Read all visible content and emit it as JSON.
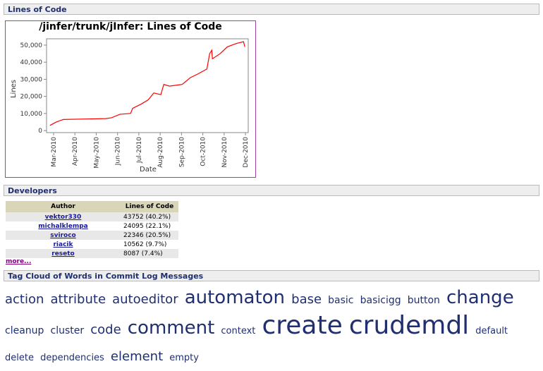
{
  "sections": [
    "Lines of Code",
    "Developers",
    "Tag Cloud of Words in Commit Log Messages"
  ],
  "chart_data": {
    "type": "line",
    "title": "/jinfer/trunk/jInfer: Lines of Code",
    "xlabel": "Date",
    "ylabel": "Lines",
    "x": [
      2.83,
      3.13,
      3.46,
      5.45,
      5.72,
      6.11,
      6.61,
      6.71,
      7.11,
      7.44,
      7.7,
      8.03,
      8.17,
      8.43,
      9.03,
      9.42,
      9.75,
      10.19,
      10.32,
      10.42,
      10.45,
      10.81,
      11.15,
      11.58,
      11.91,
      11.97
    ],
    "series": [
      {
        "name": "Lines",
        "color": "#ff0000",
        "values": [
          3000,
          5000,
          6500,
          7000,
          7500,
          9500,
          10000,
          13000,
          15500,
          18000,
          22000,
          21000,
          27000,
          26000,
          27000,
          31000,
          33000,
          36000,
          45000,
          47000,
          42000,
          45000,
          49000,
          51000,
          52000,
          49000
        ]
      }
    ],
    "xlim": [
      2.67,
      12.13
    ],
    "xticks": [
      {
        "value": 3,
        "label": "Mar-2010"
      },
      {
        "value": 4,
        "label": "Apr-2010"
      },
      {
        "value": 5,
        "label": "May-2010"
      },
      {
        "value": 6,
        "label": "Jun-2010"
      },
      {
        "value": 7,
        "label": "Jul-2010"
      },
      {
        "value": 8,
        "label": "Aug-2010"
      },
      {
        "value": 9,
        "label": "Sep-2010"
      },
      {
        "value": 10,
        "label": "Oct-2010"
      },
      {
        "value": 11,
        "label": "Nov-2010"
      },
      {
        "value": 12,
        "label": "Dec-2010"
      }
    ],
    "ylim": [
      -1200,
      53700
    ],
    "yticks": [
      0,
      {
        "value": 10000,
        "label": "10,000"
      },
      {
        "value": 20000,
        "label": "20,000"
      },
      {
        "value": 30000,
        "label": "30,000"
      },
      {
        "value": 40000,
        "label": "40,000"
      },
      {
        "value": 50000,
        "label": "50,000"
      }
    ]
  },
  "table": {
    "header": [
      "Author",
      "Lines of Code"
    ],
    "rows": [
      [
        "vektor330",
        "43752 (40.2%)"
      ],
      [
        "michalklempa",
        "24095 (22.1%)"
      ],
      [
        "sviroco",
        "22346 (20.5%)"
      ],
      [
        "riacik",
        "10562 (9.7%)"
      ],
      [
        "reseto",
        "8087 (7.4%)"
      ]
    ]
  },
  "more": "more...",
  "tags": [
    "action",
    "attribute",
    "autoeditor",
    "automaton",
    "base",
    "basic",
    "basicigg",
    "button",
    "change",
    "cleanup",
    "cluster",
    "code",
    "comment",
    "context",
    "create",
    "crudemdl",
    "default",
    "delete",
    "dependencies",
    "element",
    "empty"
  ]
}
